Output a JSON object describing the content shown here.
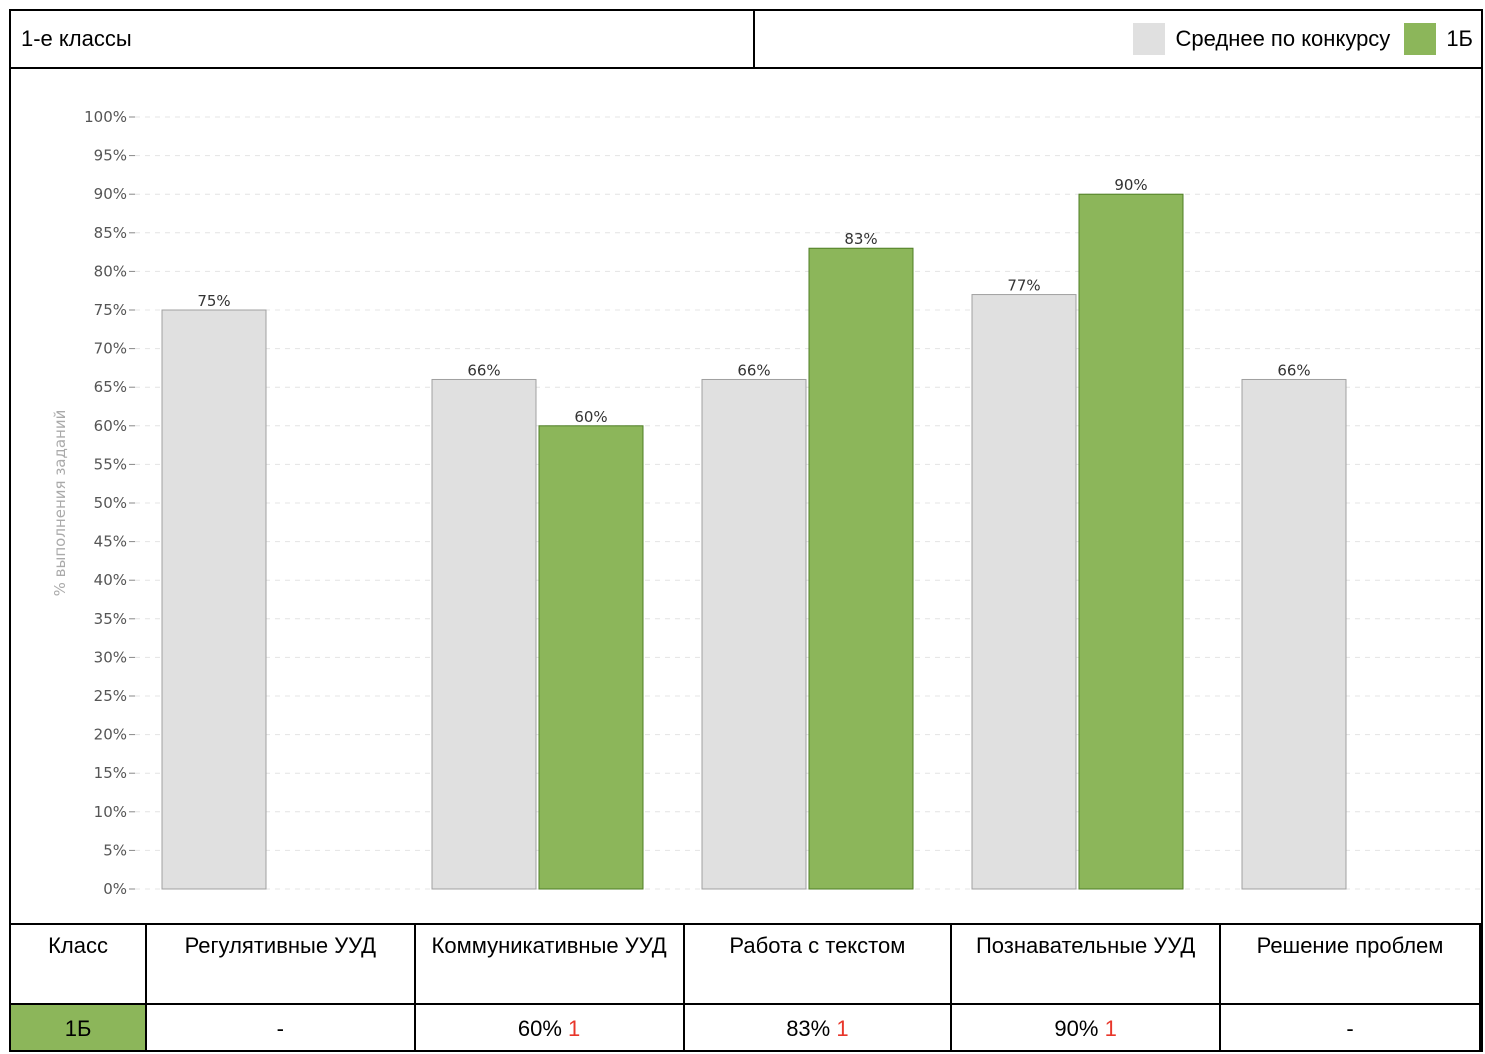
{
  "header": {
    "title": "1-е классы"
  },
  "legend": [
    {
      "label": "Среднее по конкурсу",
      "color": "#e0e0e0"
    },
    {
      "label": "1Б",
      "color": "#8cb65a"
    }
  ],
  "chart_data": {
    "type": "bar",
    "ylabel": "% выполнения заданий",
    "ylim": [
      0,
      100
    ],
    "y_ticks": [
      "0%",
      "5%",
      "10%",
      "15%",
      "20%",
      "25%",
      "30%",
      "35%",
      "40%",
      "45%",
      "50%",
      "55%",
      "60%",
      "65%",
      "70%",
      "75%",
      "80%",
      "85%",
      "90%",
      "95%",
      "100%"
    ],
    "grid": true,
    "categories": [
      "Регулятивные УУД",
      "Коммуникативные УУД",
      "Работа с текстом",
      "Познавательные УУД",
      "Решение проблем"
    ],
    "series": [
      {
        "name": "Среднее по конкурсу",
        "color": "#e0e0e0",
        "stroke": "#a0a0a0",
        "values": [
          75,
          66,
          66,
          77,
          66
        ],
        "labels": [
          "75%",
          "66%",
          "66%",
          "77%",
          "66%"
        ]
      },
      {
        "name": "1Б",
        "color": "#8cb65a",
        "stroke": "#4e7d24",
        "values": [
          null,
          60,
          83,
          90,
          null
        ],
        "labels": [
          null,
          "60%",
          "83%",
          "90%",
          null
        ]
      }
    ]
  },
  "table": {
    "headers": [
      "Класс",
      "Регулятивные УУД",
      "Коммуникативные УУД",
      "Работа с текстом",
      "Познавательные УУД",
      "Решение проблем"
    ],
    "row": {
      "class": "1Б",
      "class_color": "#8cb65a",
      "cells": [
        {
          "value": "-",
          "flag": ""
        },
        {
          "value": "60%",
          "flag": "1"
        },
        {
          "value": "83%",
          "flag": "1"
        },
        {
          "value": "90%",
          "flag": "1"
        },
        {
          "value": "-",
          "flag": ""
        }
      ]
    }
  }
}
